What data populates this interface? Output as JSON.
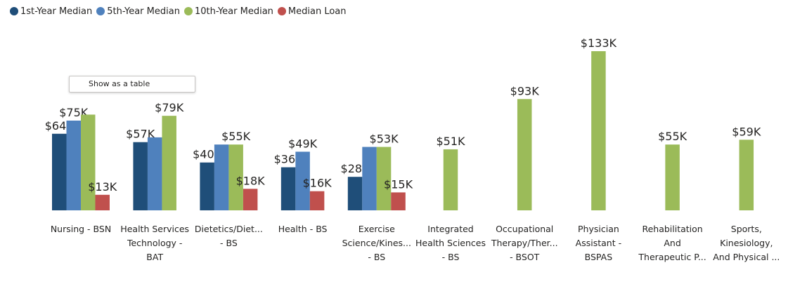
{
  "legend": [
    {
      "label": "1st-Year Median",
      "color": "#1f4e79"
    },
    {
      "label": "5th-Year Median",
      "color": "#4f81bd"
    },
    {
      "label": "10th-Year Median",
      "color": "#9bbb59"
    },
    {
      "label": "Median Loan",
      "color": "#c0504d"
    }
  ],
  "menu": {
    "show_as_table": "Show as a table"
  },
  "chart_data": {
    "type": "bar",
    "categories": [
      [
        "Nursing - BSN"
      ],
      [
        "Health Services",
        "Technology -",
        "BAT"
      ],
      [
        "Dietetics/Diet...",
        "- BS"
      ],
      [
        "Health - BS"
      ],
      [
        "Exercise",
        "Science/Kines...",
        "- BS"
      ],
      [
        "Integrated",
        "Health Sciences",
        "- BS"
      ],
      [
        "Occupational",
        "Therapy/Ther...",
        "- BSOT"
      ],
      [
        "Physician",
        "Assistant -",
        "BSPAS"
      ],
      [
        "Rehabilitation",
        "And",
        "Therapeutic P..."
      ],
      [
        "Sports,",
        "Kinesiology,",
        "And Physical ..."
      ]
    ],
    "series": [
      {
        "name": "1st-Year Median",
        "color": "#1f4e79",
        "values": [
          64,
          57,
          40,
          36,
          28,
          null,
          null,
          null,
          null,
          null
        ],
        "labels": [
          "$64K",
          "$57K",
          "$40K",
          "$36K",
          "$28K",
          null,
          null,
          null,
          null,
          null
        ]
      },
      {
        "name": "5th-Year Median",
        "color": "#4f81bd",
        "values": [
          75,
          61,
          55,
          49,
          53,
          null,
          null,
          null,
          null,
          null
        ],
        "labels": [
          "$75K",
          null,
          null,
          "$49K",
          null,
          null,
          null,
          null,
          null,
          null
        ]
      },
      {
        "name": "10th-Year Median",
        "color": "#9bbb59",
        "values": [
          80,
          79,
          55,
          null,
          53,
          51,
          93,
          133,
          55,
          59
        ],
        "labels": [
          null,
          "$79K",
          "$55K",
          null,
          "$53K",
          "$51K",
          "$93K",
          "$133K",
          "$55K",
          "$59K"
        ]
      },
      {
        "name": "Median Loan",
        "color": "#c0504d",
        "values": [
          13,
          null,
          18,
          16,
          15,
          null,
          null,
          null,
          null,
          null
        ],
        "labels": [
          "$13K",
          null,
          "$18K",
          "$16K",
          "$15K",
          null,
          null,
          null,
          null,
          null
        ]
      }
    ],
    "ylim": [
      0,
      133
    ],
    "grid": false,
    "legend_position": "top-left"
  }
}
